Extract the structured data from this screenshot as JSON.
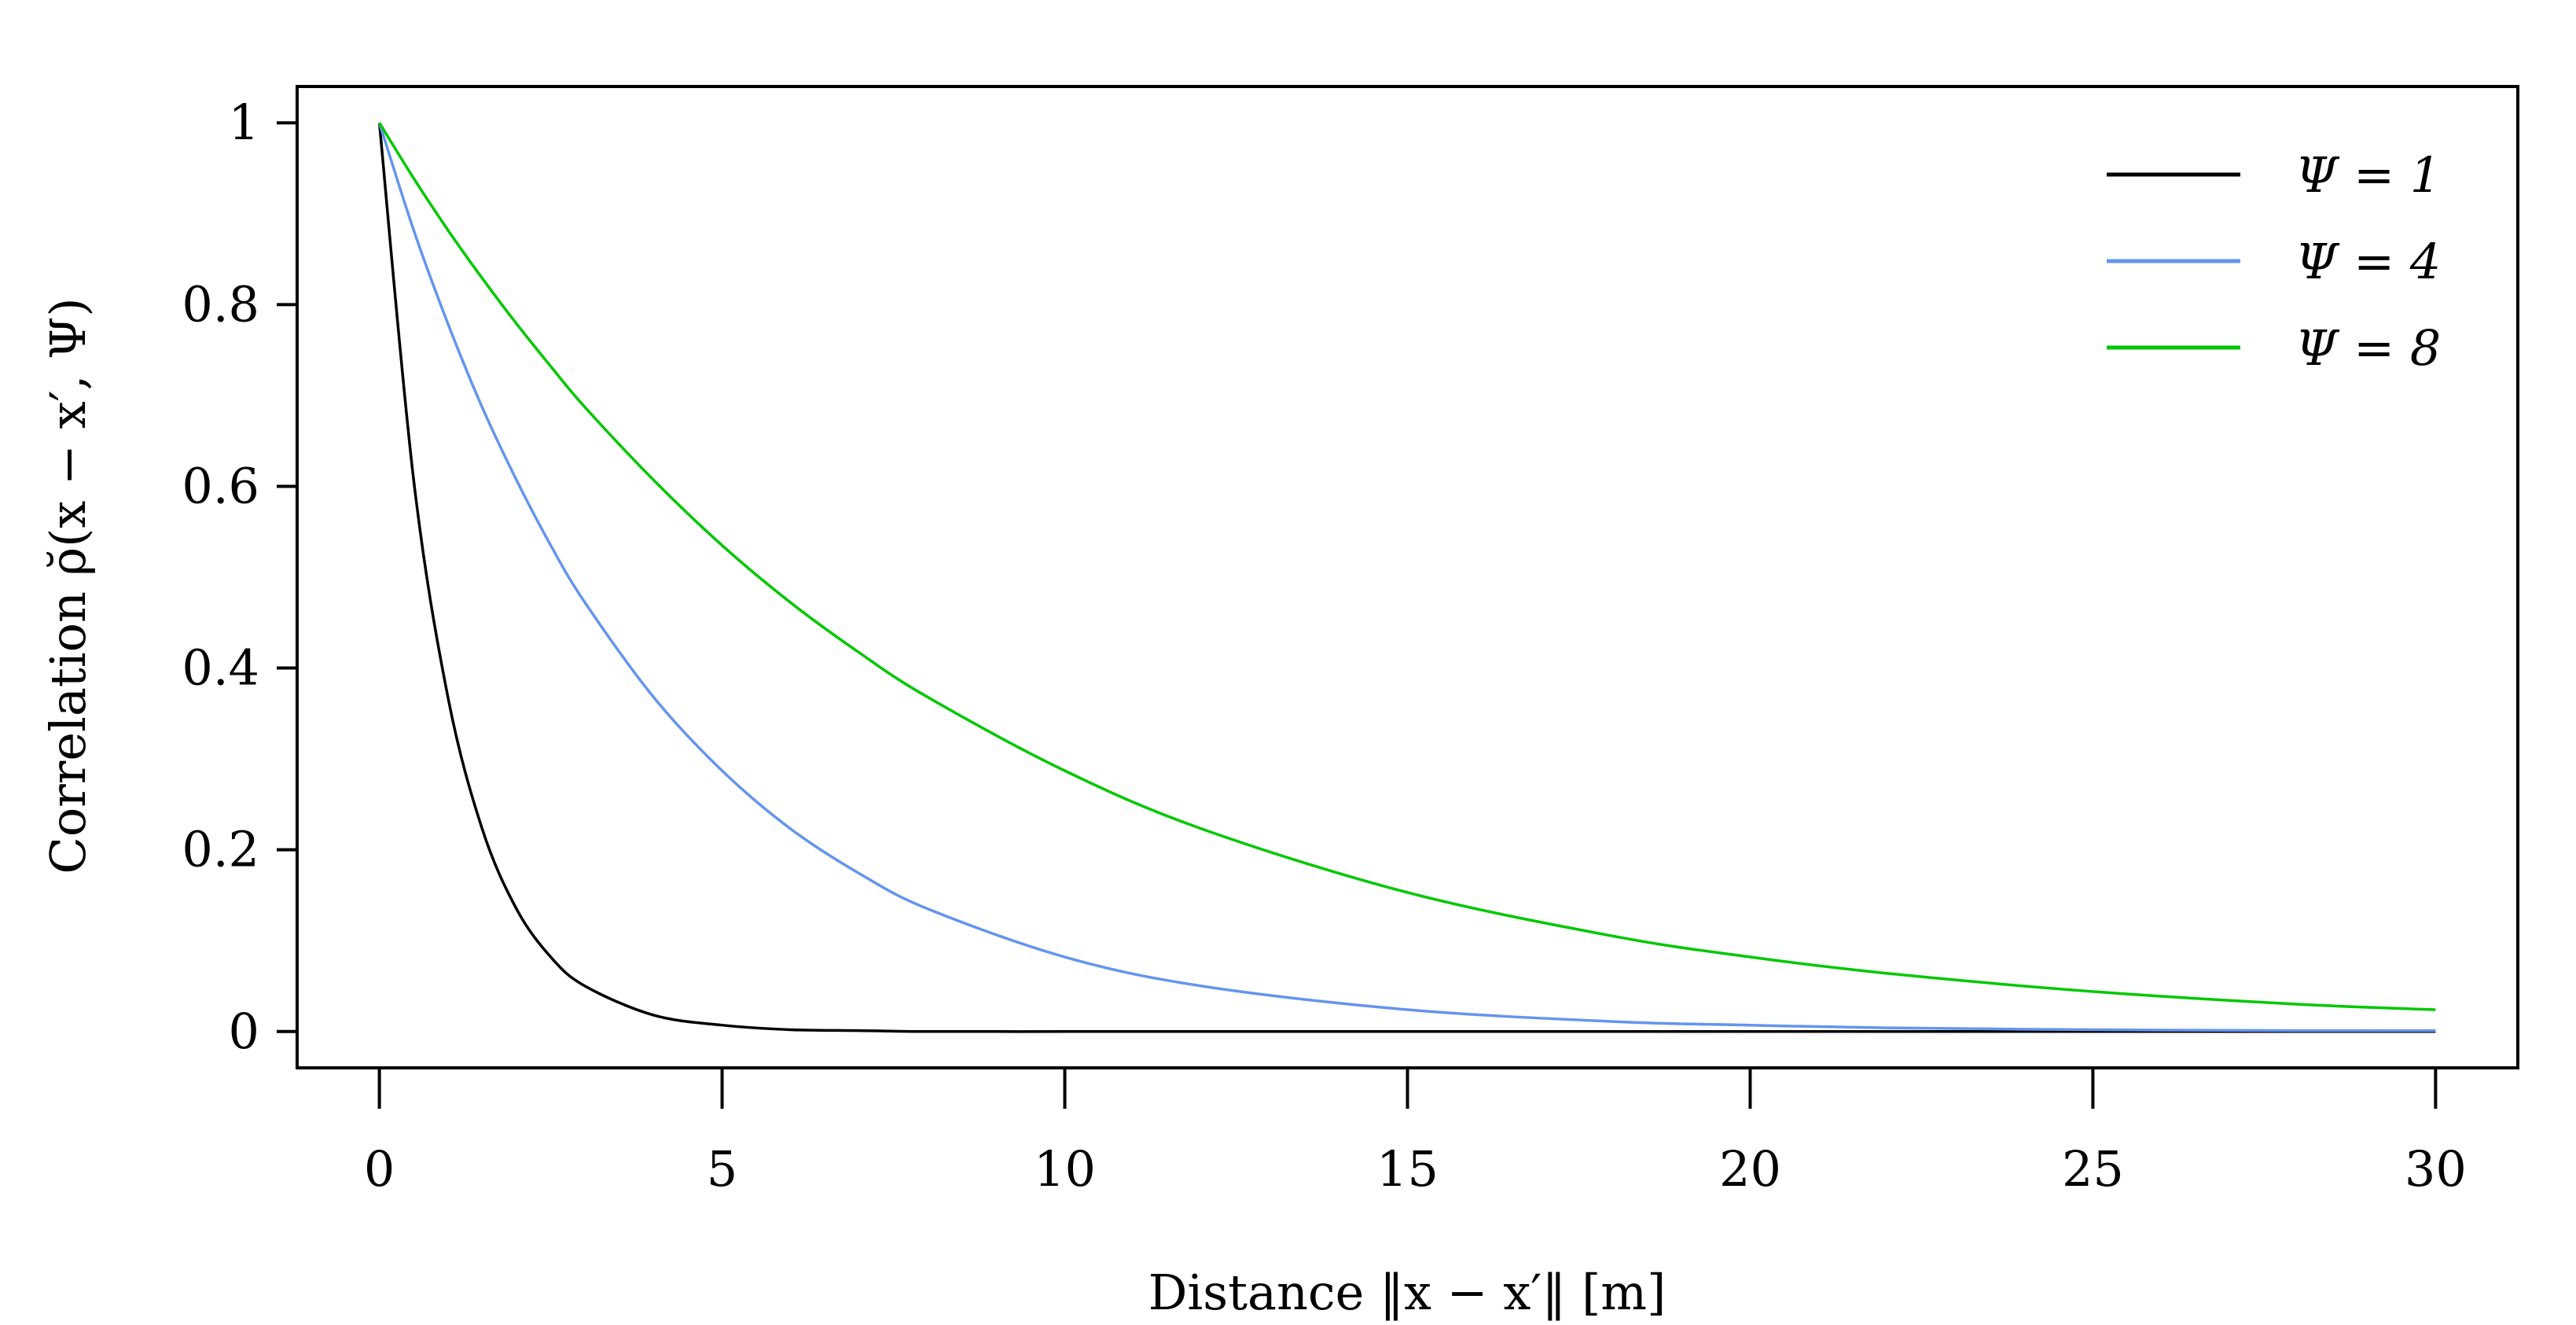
{
  "chart_data": {
    "type": "line",
    "xlabel": "Distance ‖x − x′‖ [m]",
    "ylabel": "Correlation ρ̆(x − x′, Ψ)",
    "xlim": [
      -1.2,
      31.2
    ],
    "ylim": [
      -0.04,
      1.04
    ],
    "x_ticks": [
      0,
      5,
      10,
      15,
      20,
      25,
      30
    ],
    "x_tick_labels": [
      "0",
      "5",
      "10",
      "15",
      "20",
      "25",
      "30"
    ],
    "y_ticks": [
      0,
      0.2,
      0.4,
      0.6,
      0.8,
      1
    ],
    "y_tick_labels": [
      "0",
      "0.2",
      "0.4",
      "0.6",
      "0.8",
      "1"
    ],
    "grid": false,
    "legend_position": "top-right",
    "x": [
      0,
      0.5,
      1,
      1.5,
      2,
      2.5,
      3,
      4,
      5,
      6,
      7,
      8,
      10,
      12,
      15,
      18,
      20,
      22,
      25,
      28,
      30
    ],
    "series": [
      {
        "name": "Ψ = 1",
        "color": "#000000",
        "values": [
          1.0,
          0.607,
          0.368,
          0.223,
          0.135,
          0.082,
          0.05,
          0.018,
          0.007,
          0.002,
          0.001,
          0.0,
          0.0,
          0.0,
          0.0,
          0.0,
          0.0,
          0.0,
          0.0,
          0.0,
          0.0
        ]
      },
      {
        "name": "Ψ = 4",
        "color": "#6495ED",
        "values": [
          1.0,
          0.882,
          0.779,
          0.687,
          0.607,
          0.535,
          0.472,
          0.368,
          0.287,
          0.223,
          0.174,
          0.135,
          0.082,
          0.05,
          0.024,
          0.011,
          0.007,
          0.004,
          0.002,
          0.001,
          0.001
        ]
      },
      {
        "name": "Ψ = 8",
        "color": "#00C800",
        "values": [
          1.0,
          0.939,
          0.882,
          0.829,
          0.779,
          0.732,
          0.687,
          0.607,
          0.535,
          0.472,
          0.417,
          0.368,
          0.287,
          0.223,
          0.153,
          0.105,
          0.082,
          0.064,
          0.044,
          0.03,
          0.024
        ]
      }
    ]
  }
}
